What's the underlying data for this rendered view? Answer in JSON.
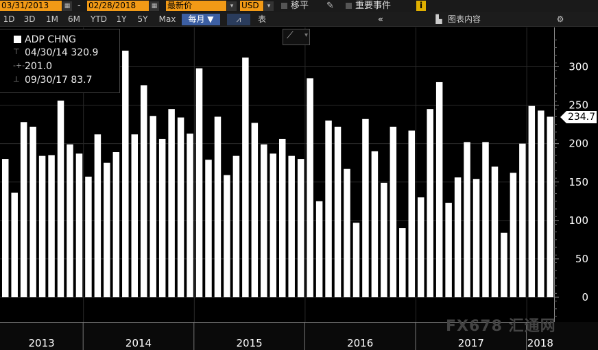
{
  "toolbar": {
    "start_date": "03/31/2013",
    "date_sep": "-",
    "end_date": "02/28/2018",
    "price_field": "最新价",
    "currency": "USD",
    "shift_label": "移平",
    "events_label": "重要事件",
    "info_icon": "i",
    "periods": [
      "1D",
      "3D",
      "1M",
      "6M",
      "YTD",
      "1Y",
      "5Y",
      "Max"
    ],
    "frequency": "每月",
    "table_label": "表",
    "chart_content_label": "图表内容"
  },
  "legend": {
    "series_name": "ADP CHNG",
    "high": "04/30/14 320.9",
    "average": "201.0",
    "low": "09/30/17 83.7"
  },
  "last_value_label": "234.7",
  "watermark": "FX678 汇通网",
  "colors": {
    "background": "#000000",
    "bar": "#ffffff",
    "accent": "#f29a16",
    "selected": "#3c5fa3"
  },
  "chart_data": {
    "type": "bar",
    "series": [
      {
        "name": "ADP CHNG",
        "values": [
          180,
          136,
          228,
          222,
          184,
          185,
          256,
          199,
          187,
          157,
          212,
          175,
          189,
          321,
          212,
          276,
          236,
          206,
          245,
          234,
          213,
          298,
          179,
          235,
          159,
          184,
          312,
          227,
          199,
          187,
          206,
          184,
          180,
          285,
          125,
          230,
          222,
          167,
          97,
          232,
          190,
          149,
          222,
          90,
          217,
          130,
          245,
          280,
          123,
          156,
          202,
          154,
          202,
          170,
          84,
          162,
          200,
          249,
          243,
          235
        ]
      }
    ],
    "x_axis_labels": [
      "2013",
      "2014",
      "2015",
      "2016",
      "2017",
      "2018"
    ],
    "y_ticks": [
      0,
      50,
      100,
      150,
      200,
      250,
      300
    ],
    "ylim": [
      -30,
      350
    ],
    "grid": true,
    "legend_position": "top-left"
  }
}
